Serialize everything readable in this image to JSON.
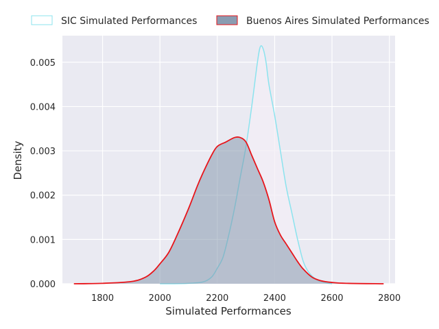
{
  "chart_data": {
    "type": "area",
    "title": "",
    "xlabel": "Simulated Performances",
    "ylabel": "Density",
    "xlim": [
      1660,
      2820
    ],
    "ylim": [
      0,
      0.0056
    ],
    "x_ticks": [
      1800,
      2000,
      2200,
      2400,
      2600,
      2800
    ],
    "x_tick_labels": [
      "1800",
      "2000",
      "2200",
      "2400",
      "2600",
      "2800"
    ],
    "y_ticks": [
      0,
      0.001,
      0.002,
      0.003,
      0.004,
      0.005
    ],
    "y_tick_labels": [
      "0.000",
      "0.001",
      "0.002",
      "0.003",
      "0.004",
      "0.005"
    ],
    "grid": true,
    "legend_position": "top-center outside",
    "series": [
      {
        "name": "SIC Simulated Performances",
        "line_color": "#8be3ee",
        "fill_color": "#f3eef5",
        "points": [
          [
            2000,
            0
          ],
          [
            2050,
            0
          ],
          [
            2100,
            1e-05
          ],
          [
            2150,
            4e-05
          ],
          [
            2180,
            0.00015
          ],
          [
            2200,
            0.00035
          ],
          [
            2220,
            0.0006
          ],
          [
            2240,
            0.0011
          ],
          [
            2260,
            0.0017
          ],
          [
            2280,
            0.0024
          ],
          [
            2300,
            0.0031
          ],
          [
            2320,
            0.004
          ],
          [
            2340,
            0.005
          ],
          [
            2350,
            0.00535
          ],
          [
            2360,
            0.0053
          ],
          [
            2370,
            0.005
          ],
          [
            2380,
            0.0045
          ],
          [
            2400,
            0.0038
          ],
          [
            2420,
            0.003
          ],
          [
            2440,
            0.0022
          ],
          [
            2460,
            0.0016
          ],
          [
            2480,
            0.001
          ],
          [
            2500,
            0.0005
          ],
          [
            2520,
            0.00025
          ],
          [
            2550,
            8e-05
          ],
          [
            2580,
            2e-05
          ],
          [
            2600,
            0
          ]
        ]
      },
      {
        "name": "Buenos Aires Simulated Performances",
        "line_color": "#e8141a",
        "fill_color": "#7d91a8",
        "points": [
          [
            1700,
            0
          ],
          [
            1800,
            1e-05
          ],
          [
            1900,
            5e-05
          ],
          [
            1950,
            0.00015
          ],
          [
            1980,
            0.0003
          ],
          [
            2000,
            0.00045
          ],
          [
            2030,
            0.0007
          ],
          [
            2060,
            0.0011
          ],
          [
            2100,
            0.0017
          ],
          [
            2130,
            0.0022
          ],
          [
            2150,
            0.0025
          ],
          [
            2180,
            0.0029
          ],
          [
            2200,
            0.0031
          ],
          [
            2230,
            0.0032
          ],
          [
            2260,
            0.0033
          ],
          [
            2280,
            0.0033
          ],
          [
            2300,
            0.0032
          ],
          [
            2320,
            0.0029
          ],
          [
            2340,
            0.0026
          ],
          [
            2360,
            0.0023
          ],
          [
            2380,
            0.0019
          ],
          [
            2400,
            0.0014
          ],
          [
            2420,
            0.0011
          ],
          [
            2440,
            0.0009
          ],
          [
            2460,
            0.0007
          ],
          [
            2480,
            0.0005
          ],
          [
            2500,
            0.00033
          ],
          [
            2530,
            0.00015
          ],
          [
            2560,
            7e-05
          ],
          [
            2600,
            3e-05
          ],
          [
            2650,
            1e-05
          ],
          [
            2780,
            0
          ]
        ]
      }
    ]
  }
}
